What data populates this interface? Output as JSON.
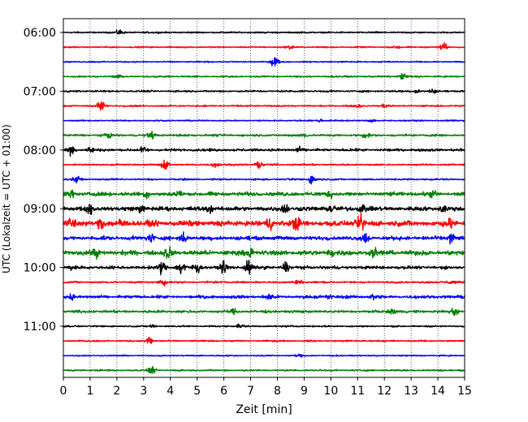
{
  "chart_data": {
    "type": "line",
    "title": "",
    "xlabel": "Zeit  [min]",
    "ylabel": "UTC (Lokalzeit = UTC + 01:00)",
    "xlim": [
      0,
      15
    ],
    "x_ticks": [
      "0",
      "1",
      "2",
      "3",
      "4",
      "5",
      "6",
      "7",
      "8",
      "9",
      "10",
      "11",
      "12",
      "13",
      "14",
      "15"
    ],
    "y_tick_labels": [
      {
        "label": "06:00",
        "row": 0
      },
      {
        "label": "07:00",
        "row": 4
      },
      {
        "label": "08:00",
        "row": 8
      },
      {
        "label": "09:00",
        "row": 12
      },
      {
        "label": "10:00",
        "row": 16
      },
      {
        "label": "11:00",
        "row": 20
      }
    ],
    "grid": {
      "x": "dotted vertical lines at each minute",
      "y": false
    },
    "legend": "none",
    "row_minutes": 15,
    "row_start_time": "06:00",
    "color_cycle": [
      "#000000",
      "#ff0000",
      "#0000ff",
      "#008000"
    ],
    "series": [
      {
        "start": "06:00",
        "color": "#000000",
        "baseline": 0.18,
        "events": [
          [
            2.1,
            0.7
          ]
        ]
      },
      {
        "start": "06:15",
        "color": "#ff0000",
        "baseline": 0.15,
        "events": [
          [
            8.5,
            0.5
          ],
          [
            14.2,
            1.3
          ],
          [
            12.5,
            0.4
          ]
        ]
      },
      {
        "start": "06:30",
        "color": "#0000ff",
        "baseline": 0.15,
        "events": [
          [
            7.9,
            1.6
          ]
        ]
      },
      {
        "start": "06:45",
        "color": "#008000",
        "baseline": 0.18,
        "events": [
          [
            12.7,
            1.0
          ],
          [
            2.0,
            0.4
          ]
        ]
      },
      {
        "start": "07:00",
        "color": "#000000",
        "baseline": 0.2,
        "events": [
          [
            13.2,
            0.6
          ],
          [
            13.8,
            0.5
          ]
        ]
      },
      {
        "start": "07:15",
        "color": "#ff0000",
        "baseline": 0.18,
        "events": [
          [
            1.4,
            1.6
          ],
          [
            11.0,
            0.6
          ],
          [
            12.0,
            0.5
          ]
        ]
      },
      {
        "start": "07:30",
        "color": "#0000ff",
        "baseline": 0.15,
        "events": [
          [
            9.6,
            0.4
          ],
          [
            11.5,
            0.4
          ]
        ]
      },
      {
        "start": "07:45",
        "color": "#008000",
        "baseline": 0.25,
        "events": [
          [
            1.7,
            0.6
          ],
          [
            3.3,
            0.9
          ],
          [
            9.0,
            0.6
          ],
          [
            11.3,
            0.6
          ]
        ]
      },
      {
        "start": "08:00",
        "color": "#000000",
        "baseline": 0.3,
        "events": [
          [
            0.3,
            1.5
          ],
          [
            1.0,
            0.7
          ],
          [
            3.0,
            0.8
          ],
          [
            8.8,
            0.7
          ]
        ]
      },
      {
        "start": "08:15",
        "color": "#ff0000",
        "baseline": 0.2,
        "events": [
          [
            3.8,
            1.8
          ],
          [
            5.7,
            0.8
          ],
          [
            7.3,
            0.8
          ]
        ]
      },
      {
        "start": "08:30",
        "color": "#0000ff",
        "baseline": 0.2,
        "events": [
          [
            0.5,
            0.9
          ],
          [
            9.3,
            1.5
          ]
        ]
      },
      {
        "start": "08:45",
        "color": "#008000",
        "baseline": 0.45,
        "events": [
          [
            0.3,
            0.8
          ],
          [
            3.1,
            0.8
          ],
          [
            4.3,
            0.8
          ],
          [
            10.0,
            0.8
          ],
          [
            13.8,
            0.8
          ]
        ]
      },
      {
        "start": "09:00",
        "color": "#000000",
        "baseline": 0.5,
        "events": [
          [
            1.0,
            1.2
          ],
          [
            2.9,
            1.0
          ],
          [
            5.5,
            1.0
          ],
          [
            8.3,
            1.4
          ],
          [
            10.0,
            1.3
          ],
          [
            11.2,
            1.3
          ],
          [
            14.2,
            1.1
          ]
        ]
      },
      {
        "start": "09:15",
        "color": "#ff0000",
        "baseline": 0.65,
        "events": [
          [
            0.3,
            1.5
          ],
          [
            1.4,
            1.5
          ],
          [
            2.2,
            1.3
          ],
          [
            7.7,
            1.4
          ],
          [
            8.7,
            1.6
          ],
          [
            11.1,
            2.5
          ],
          [
            14.5,
            1.2
          ]
        ]
      },
      {
        "start": "09:30",
        "color": "#0000ff",
        "baseline": 0.45,
        "events": [
          [
            3.3,
            1.1
          ],
          [
            4.5,
            1.1
          ],
          [
            11.3,
            1.4
          ],
          [
            14.5,
            1.6
          ]
        ]
      },
      {
        "start": "09:45",
        "color": "#008000",
        "baseline": 0.55,
        "events": [
          [
            1.2,
            1.0
          ],
          [
            3.9,
            1.6
          ],
          [
            7.0,
            1.3
          ],
          [
            10.0,
            1.0
          ],
          [
            11.6,
            1.0
          ]
        ]
      },
      {
        "start": "10:00",
        "color": "#000000",
        "baseline": 0.35,
        "events": [
          [
            0.3,
            0.8
          ],
          [
            3.7,
            1.8
          ],
          [
            4.4,
            2.2
          ],
          [
            5.0,
            1.5
          ],
          [
            6.0,
            1.4
          ],
          [
            6.9,
            2.2
          ],
          [
            8.3,
            1.5
          ]
        ]
      },
      {
        "start": "10:15",
        "color": "#ff0000",
        "baseline": 0.22,
        "events": [
          [
            3.7,
            1.2
          ],
          [
            8.8,
            0.8
          ],
          [
            14.5,
            0.8
          ]
        ]
      },
      {
        "start": "10:30",
        "color": "#0000ff",
        "baseline": 0.35,
        "events": [
          [
            0.3,
            0.7
          ],
          [
            7.7,
            1.0
          ],
          [
            9.9,
            0.8
          ],
          [
            11.6,
            0.7
          ]
        ]
      },
      {
        "start": "10:45",
        "color": "#008000",
        "baseline": 0.3,
        "events": [
          [
            6.4,
            0.7
          ],
          [
            12.3,
            0.8
          ],
          [
            14.6,
            1.3
          ]
        ]
      },
      {
        "start": "11:00",
        "color": "#000000",
        "baseline": 0.18,
        "events": [
          [
            6.6,
            0.7
          ],
          [
            3.3,
            0.4
          ]
        ]
      },
      {
        "start": "11:15",
        "color": "#ff0000",
        "baseline": 0.18,
        "events": [
          [
            3.2,
            1.2
          ]
        ]
      },
      {
        "start": "11:30",
        "color": "#0000ff",
        "baseline": 0.15,
        "events": [
          [
            8.8,
            0.4
          ]
        ]
      },
      {
        "start": "11:45",
        "color": "#008000",
        "baseline": 0.18,
        "events": [
          [
            3.3,
            1.0
          ]
        ]
      }
    ]
  }
}
